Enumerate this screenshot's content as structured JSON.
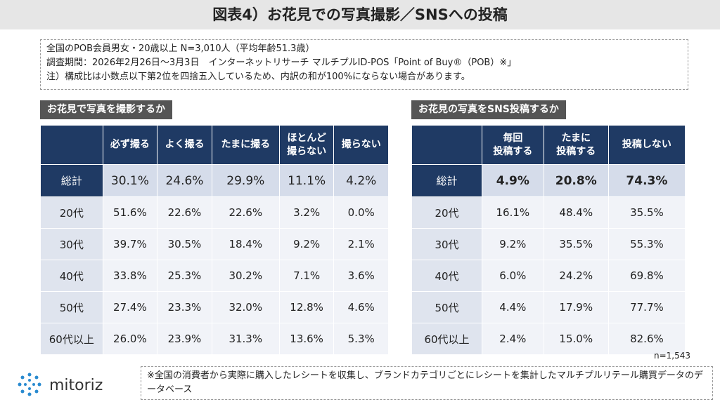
{
  "header": {
    "title": "図表4）お花見での写真撮影／SNSへの投稿"
  },
  "info": {
    "lines": [
      "全国のPOB会員男女・20歳以上 N=3,010人（平均年齢51.3歳）",
      "調査期間：2026年2月26日～3月3日　インターネットリサーチ マルチプルID-POS「Point of Buy®（POB）※」",
      "注）構成比は小数点以下第2位を四捨五入しているため、内訳の和が100%にならない場合があります。"
    ]
  },
  "left_table": {
    "label": "お花見で写真を撮影するか",
    "columns": [
      "必ず撮る",
      "よく撮る",
      "たまに撮る",
      "ほとんど\n撮らない",
      "撮らない"
    ],
    "rows": [
      {
        "label": "総計",
        "values": [
          "30.1%",
          "24.6%",
          "29.9%",
          "11.1%",
          "4.2%"
        ]
      },
      {
        "label": "20代",
        "values": [
          "51.6%",
          "22.6%",
          "22.6%",
          "3.2%",
          "0.0%"
        ]
      },
      {
        "label": "30代",
        "values": [
          "39.7%",
          "30.5%",
          "18.4%",
          "9.2%",
          "2.1%"
        ]
      },
      {
        "label": "40代",
        "values": [
          "33.8%",
          "25.3%",
          "30.2%",
          "7.1%",
          "3.6%"
        ]
      },
      {
        "label": "50代",
        "values": [
          "27.4%",
          "23.3%",
          "32.0%",
          "12.8%",
          "4.6%"
        ]
      },
      {
        "label": "60代以上",
        "values": [
          "26.0%",
          "23.9%",
          "31.3%",
          "13.6%",
          "5.3%"
        ]
      }
    ]
  },
  "right_table": {
    "label": "お花見の写真をSNS投稿するか",
    "columns": [
      "毎回\n投稿する",
      "たまに\n投稿する",
      "投稿しない"
    ],
    "rows": [
      {
        "label": "総計",
        "values": [
          "4.9%",
          "20.8%",
          "74.3%"
        ]
      },
      {
        "label": "20代",
        "values": [
          "16.1%",
          "48.4%",
          "35.5%"
        ]
      },
      {
        "label": "30代",
        "values": [
          "9.2%",
          "35.5%",
          "55.3%"
        ]
      },
      {
        "label": "40代",
        "values": [
          "6.0%",
          "24.2%",
          "69.8%"
        ]
      },
      {
        "label": "50代",
        "values": [
          "4.4%",
          "17.9%",
          "77.7%"
        ]
      },
      {
        "label": "60代以上",
        "values": [
          "2.4%",
          "15.0%",
          "82.6%"
        ]
      }
    ],
    "note": "n=1,543"
  },
  "footer": {
    "logo": "mitoriz",
    "note": "※全国の消費者から実際に購入したレシートを収集し、ブランドカテゴリごとにレシートを集計したマルチプルリテール購買データのデータベース"
  }
}
